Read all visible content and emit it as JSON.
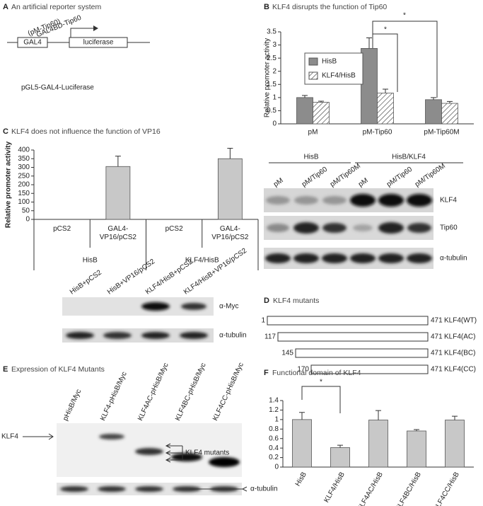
{
  "chart_data": [
    {
      "type": "bar",
      "title": "KLF4 disrupts the function of Tip60",
      "y_label": "Relative promoter activity",
      "categories": [
        "pM",
        "pM-Tip60",
        "pM-Tip60M"
      ],
      "series": [
        {
          "name": "HisB",
          "color": "#8c8c8c",
          "values": [
            1.0,
            2.87,
            0.92
          ],
          "errors": [
            0.08,
            0.4,
            0.08
          ]
        },
        {
          "name": "KLF4/HisB",
          "color": "#ffffff",
          "hatch": true,
          "values": [
            0.82,
            1.17,
            0.78
          ],
          "errors": [
            0.04,
            0.15,
            0.07
          ]
        }
      ],
      "ylim": [
        0,
        3.5
      ],
      "yticks": [
        0,
        0.5,
        1,
        1.5,
        2,
        2.5,
        3,
        3.5
      ],
      "legend": "upper-left",
      "significance": [
        "*",
        "*"
      ]
    },
    {
      "type": "bar",
      "title": "KLF4 does not influence the function of VP16",
      "y_label": "Relative promoter activity",
      "categories": [
        "pCS2",
        "GAL4-VP16/pCS2",
        "pCS2",
        "GAL4-VP16/pCS2"
      ],
      "groups": [
        "HisB",
        "KLF4/HisB"
      ],
      "values": [
        0,
        305,
        0,
        350
      ],
      "errors": [
        0,
        60,
        0,
        60
      ],
      "color": "#c8c8c8",
      "ylim": [
        0,
        400
      ],
      "yticks": [
        0,
        50,
        100,
        150,
        200,
        250,
        300,
        350,
        400
      ]
    },
    {
      "type": "bar",
      "title": "Functional domain of KLF4",
      "categories": [
        "HisB",
        "KLF4/HisB",
        "KLF4AC/HisB",
        "KLF4BC/HisB",
        "KLF4CC/HisB"
      ],
      "values": [
        1.0,
        0.41,
        0.99,
        0.76,
        0.99
      ],
      "errors": [
        0.15,
        0.05,
        0.2,
        0.03,
        0.08
      ],
      "color": "#c8c8c8",
      "ylim": [
        0,
        1.4
      ],
      "yticks": [
        0,
        0.2,
        0.4,
        0.6,
        0.8,
        1,
        1.2,
        1.4
      ],
      "significance": [
        "*"
      ]
    }
  ],
  "panels": {
    "a": {
      "letter": "A",
      "title": "An artificial reporter system",
      "construct_labels": [
        "(pM-Tip60)",
        "GAL4BD-Tip60"
      ],
      "elements": [
        "GAL4",
        "luciferase"
      ],
      "caption": "pGL5-GAL4-Luciferase"
    },
    "b": {
      "letter": "B",
      "blot": {
        "groups": [
          "HisB",
          "HisB/KLF4"
        ],
        "lanes": [
          "pM",
          "pM/Tip60",
          "pM/Tip60M",
          "pM",
          "pM/Tip60",
          "pM/Tip60M"
        ],
        "rows": [
          "KLF4",
          "Tip60",
          "α-tubulin"
        ]
      }
    },
    "c": {
      "letter": "C",
      "blot": {
        "lanes": [
          "HisB+pCS2",
          "HisB+VP16/pCS2",
          "KLF4/HisB+pCS2",
          "KLF4/HisB+VP16/pCS2"
        ],
        "rows": [
          "α-Myc",
          "α-tubulin"
        ]
      }
    },
    "d": {
      "letter": "D",
      "title": "KLF4 mutants",
      "mutants": [
        {
          "start": 1,
          "end": 471,
          "name": "KLF4(WT)"
        },
        {
          "start": 117,
          "end": 471,
          "name": "KLF4(AC)"
        },
        {
          "start": 145,
          "end": 471,
          "name": "KLF4(BC)"
        },
        {
          "start": 170,
          "end": 471,
          "name": "KLF4(CC)"
        }
      ]
    },
    "e": {
      "letter": "E",
      "title": "Expression of KLF4 Mutants",
      "lanes": [
        "pHisB/Myc",
        "KLF4-pHisB/Myc",
        "KLF4AC-pHisB/Myc",
        "KLF4BC-pHisB/Myc",
        "KLF4CC-pHisB/Myc"
      ],
      "labels": [
        "KLF4",
        "KLF4 mutants",
        "α-tubulin"
      ]
    },
    "f": {
      "letter": "F"
    }
  }
}
